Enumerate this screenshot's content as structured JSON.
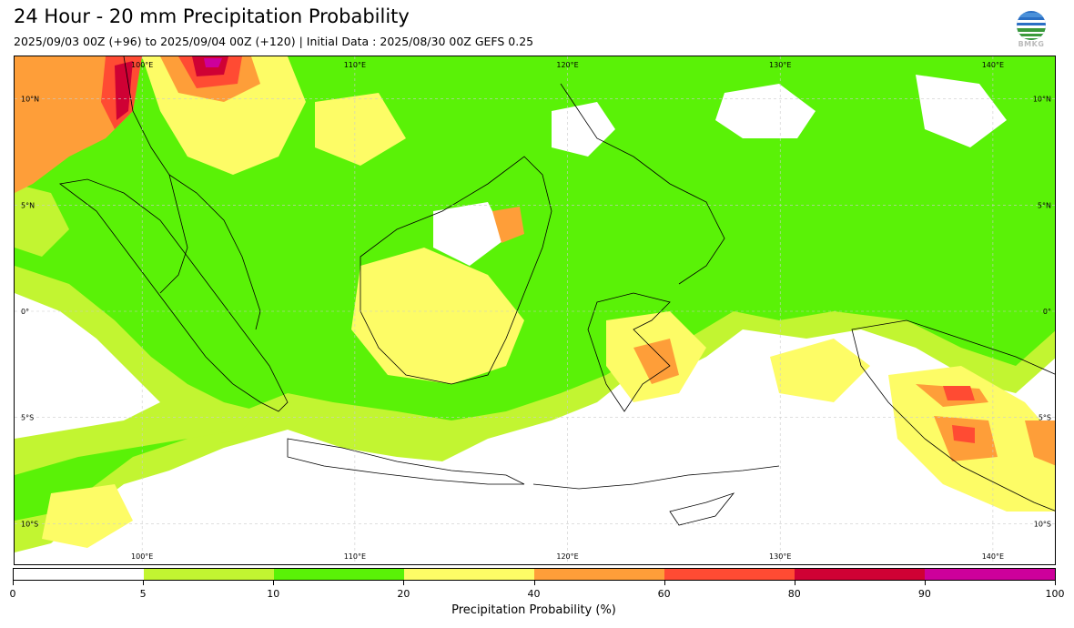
{
  "title": "24 Hour - 20 mm Precipitation Probability",
  "subtitle": "2025/09/03 00Z (+96) to 2025/09/04 00Z (+120) | Initial Data : 2025/08/30 00Z GEFS 0.25",
  "logo": {
    "icon": "bmkg-logo-icon",
    "text": "BMKG"
  },
  "map": {
    "lon_labels": [
      "100°E",
      "110°E",
      "120°E",
      "130°E",
      "140°E"
    ],
    "lat_labels": [
      "10°N",
      "5°N",
      "0°",
      "5°S",
      "10°S"
    ],
    "extent": {
      "lon": [
        94,
        143
      ],
      "lat": [
        -12,
        12
      ]
    },
    "grid": true
  },
  "colorbar": {
    "label": "Precipitation Probability (%)",
    "ticks": [
      "0",
      "5",
      "10",
      "20",
      "40",
      "60",
      "80",
      "90",
      "100"
    ],
    "colors": [
      "#ffffff",
      "#c2f531",
      "#5af207",
      "#fdfc66",
      "#fe9e39",
      "#ff4b33",
      "#cf0134",
      "#cd009b"
    ]
  }
}
